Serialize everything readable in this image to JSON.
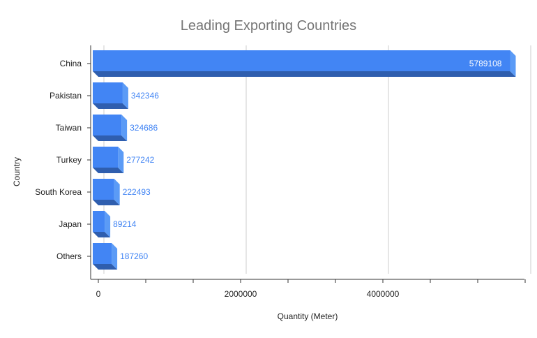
{
  "chart_data": {
    "type": "bar",
    "orientation": "horizontal",
    "style": "3d",
    "title": "Leading Exporting Countries",
    "xlabel": "Quantity (Meter)",
    "ylabel": "Country",
    "categories": [
      "China",
      "Pakistan",
      "Taiwan",
      "Turkey",
      "South Korea",
      "Japan",
      "Others"
    ],
    "values": [
      5789108,
      342346,
      324686,
      277242,
      222493,
      89214,
      187260
    ],
    "data_labels": [
      "5789108",
      "342346",
      "324686",
      "277242",
      "222493",
      "89214",
      "187260"
    ],
    "xlim": [
      0,
      6000000
    ],
    "x_ticks": [
      0,
      2000000,
      4000000
    ],
    "x_tick_labels": [
      "0",
      "2000000",
      "4000000"
    ],
    "grid": true,
    "legend": "none",
    "colors": {
      "bar_front": "#4285f4",
      "bar_side": "#5b9bf6",
      "bar_bottom": "#2f5eae",
      "gridline": "#cccccc",
      "title": "#757575"
    }
  }
}
